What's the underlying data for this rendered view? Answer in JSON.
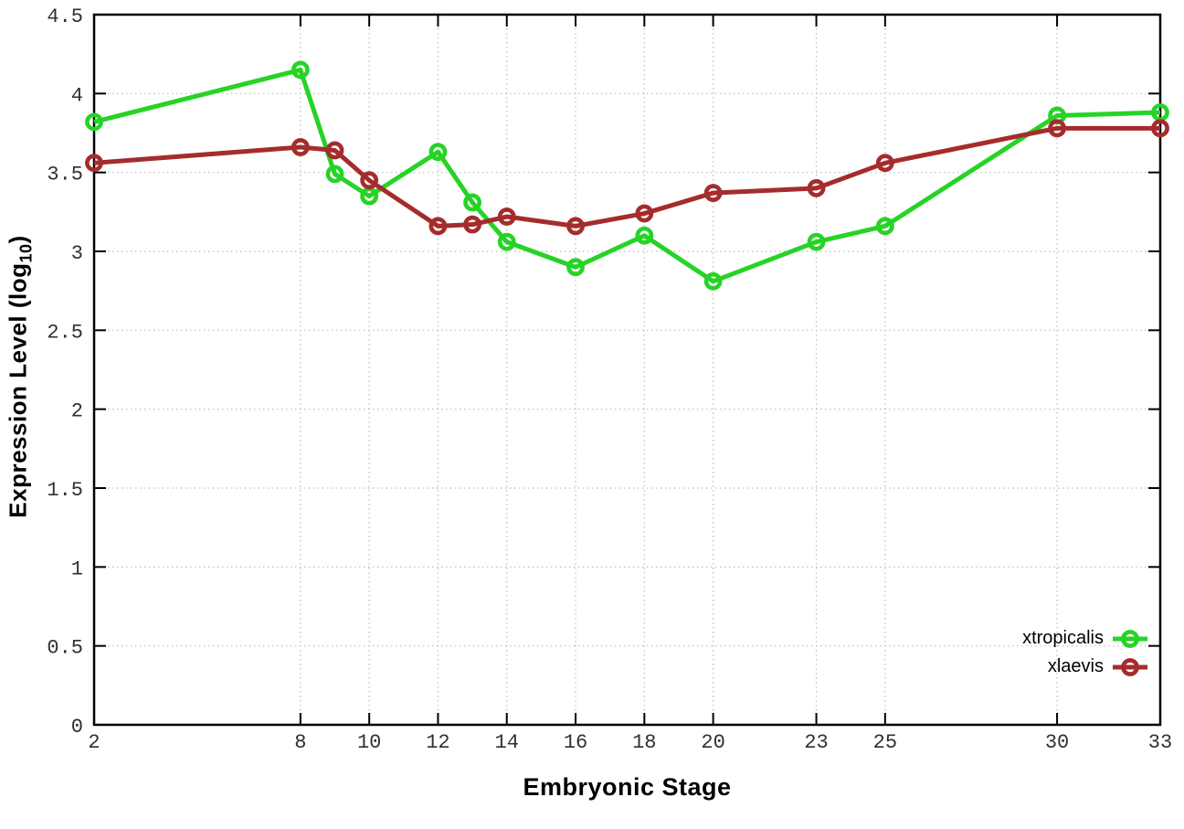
{
  "chart_data": {
    "type": "line",
    "title": "",
    "xlabel": "Embryonic Stage",
    "ylabel": "Expression Level (log10)",
    "ylabel_parts": {
      "main": "Expression Level (log",
      "sub": "10",
      "close": ")"
    },
    "x": [
      2,
      8,
      9,
      10,
      12,
      13,
      14,
      16,
      18,
      20,
      23,
      25,
      30,
      33
    ],
    "series": [
      {
        "name": "xtropicalis",
        "color": "#26d326",
        "values": [
          3.82,
          4.15,
          3.49,
          3.35,
          3.63,
          3.31,
          3.06,
          2.9,
          3.1,
          2.81,
          3.06,
          3.16,
          3.86,
          3.88
        ]
      },
      {
        "name": "xlaevis",
        "color": "#a52c2c",
        "values": [
          3.56,
          3.66,
          3.64,
          3.45,
          3.16,
          3.17,
          3.22,
          3.16,
          3.24,
          3.37,
          3.4,
          3.56,
          3.78,
          3.78
        ]
      }
    ],
    "xticks": [
      2,
      8,
      10,
      12,
      14,
      16,
      18,
      20,
      23,
      25,
      30,
      33
    ],
    "xtick_labels": [
      "2",
      "8",
      "10",
      "12",
      "14",
      "16",
      "18",
      "20",
      "23",
      "25",
      "30",
      "33"
    ],
    "yticks": [
      0,
      0.5,
      1,
      1.5,
      2,
      2.5,
      3,
      3.5,
      4,
      4.5
    ],
    "ytick_labels": [
      "0",
      "0.5",
      "1",
      "1.5",
      "2",
      "2.5",
      "3",
      "3.5",
      "4",
      "4.5"
    ],
    "xlim": [
      2,
      33
    ],
    "ylim": [
      0,
      4.5
    ],
    "grid": true,
    "legend_position": "bottom-right"
  },
  "style": {
    "background": "#ffffff",
    "axis_color": "#000000",
    "grid_color": "#bcbcbc",
    "tick_label_color": "#303030"
  }
}
